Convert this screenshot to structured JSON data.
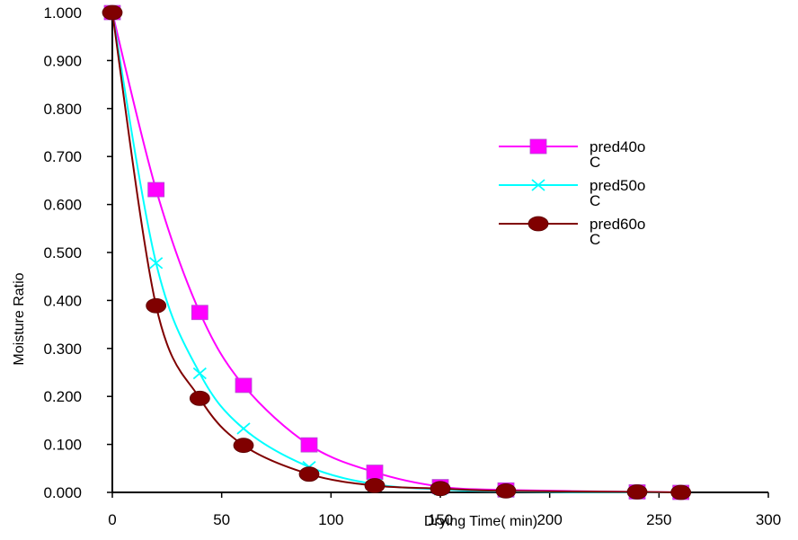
{
  "chart_data": {
    "type": "line",
    "title": "",
    "xlabel": "Drying Time( min)",
    "ylabel": "Moisture Ratio",
    "xlim": [
      0,
      300
    ],
    "ylim": [
      0,
      1
    ],
    "x_ticks": [
      "0",
      "50",
      "100",
      "150",
      "200",
      "250",
      "300"
    ],
    "y_ticks": [
      "0.000",
      "0.100",
      "0.200",
      "0.300",
      "0.400",
      "0.500",
      "0.600",
      "0.700",
      "0.800",
      "0.900",
      "1.000"
    ],
    "grid": false,
    "legend_position": "right",
    "series": [
      {
        "name": "pred40oC",
        "legend_line1": "pred40o",
        "legend_line2": "C",
        "color": "#ff00ff",
        "marker": "square",
        "points": [
          {
            "x": 0,
            "y": 1.0
          },
          {
            "x": 20,
            "y": 0.631
          },
          {
            "x": 40,
            "y": 0.375
          },
          {
            "x": 60,
            "y": 0.223
          },
          {
            "x": 90,
            "y": 0.099
          },
          {
            "x": 120,
            "y": 0.042
          },
          {
            "x": 150,
            "y": 0.012
          },
          {
            "x": 180,
            "y": 0.005
          },
          {
            "x": 240,
            "y": 0.001
          },
          {
            "x": 260,
            "y": 0.0
          }
        ]
      },
      {
        "name": "pred50oC",
        "legend_line1": "pred50o",
        "legend_line2": "C",
        "color": "#00ffff",
        "marker": "x",
        "points": [
          {
            "x": 0,
            "y": 1.0
          },
          {
            "x": 20,
            "y": 0.478
          },
          {
            "x": 40,
            "y": 0.248
          },
          {
            "x": 60,
            "y": 0.133
          },
          {
            "x": 90,
            "y": 0.053
          },
          {
            "x": 120,
            "y": 0.017
          },
          {
            "x": 150,
            "y": 0.006
          },
          {
            "x": 180,
            "y": 0.002
          },
          {
            "x": 240,
            "y": 0.0
          },
          {
            "x": 260,
            "y": 0.0
          }
        ]
      },
      {
        "name": "pred60oC",
        "legend_line1": "pred60o",
        "legend_line2": "C",
        "color": "#800000",
        "marker": "circle",
        "points": [
          {
            "x": 0,
            "y": 1.0
          },
          {
            "x": 20,
            "y": 0.389
          },
          {
            "x": 40,
            "y": 0.196
          },
          {
            "x": 60,
            "y": 0.098
          },
          {
            "x": 90,
            "y": 0.038
          },
          {
            "x": 120,
            "y": 0.014
          },
          {
            "x": 150,
            "y": 0.008
          },
          {
            "x": 180,
            "y": 0.003
          },
          {
            "x": 240,
            "y": 0.001
          },
          {
            "x": 260,
            "y": 0.0
          }
        ]
      }
    ]
  }
}
